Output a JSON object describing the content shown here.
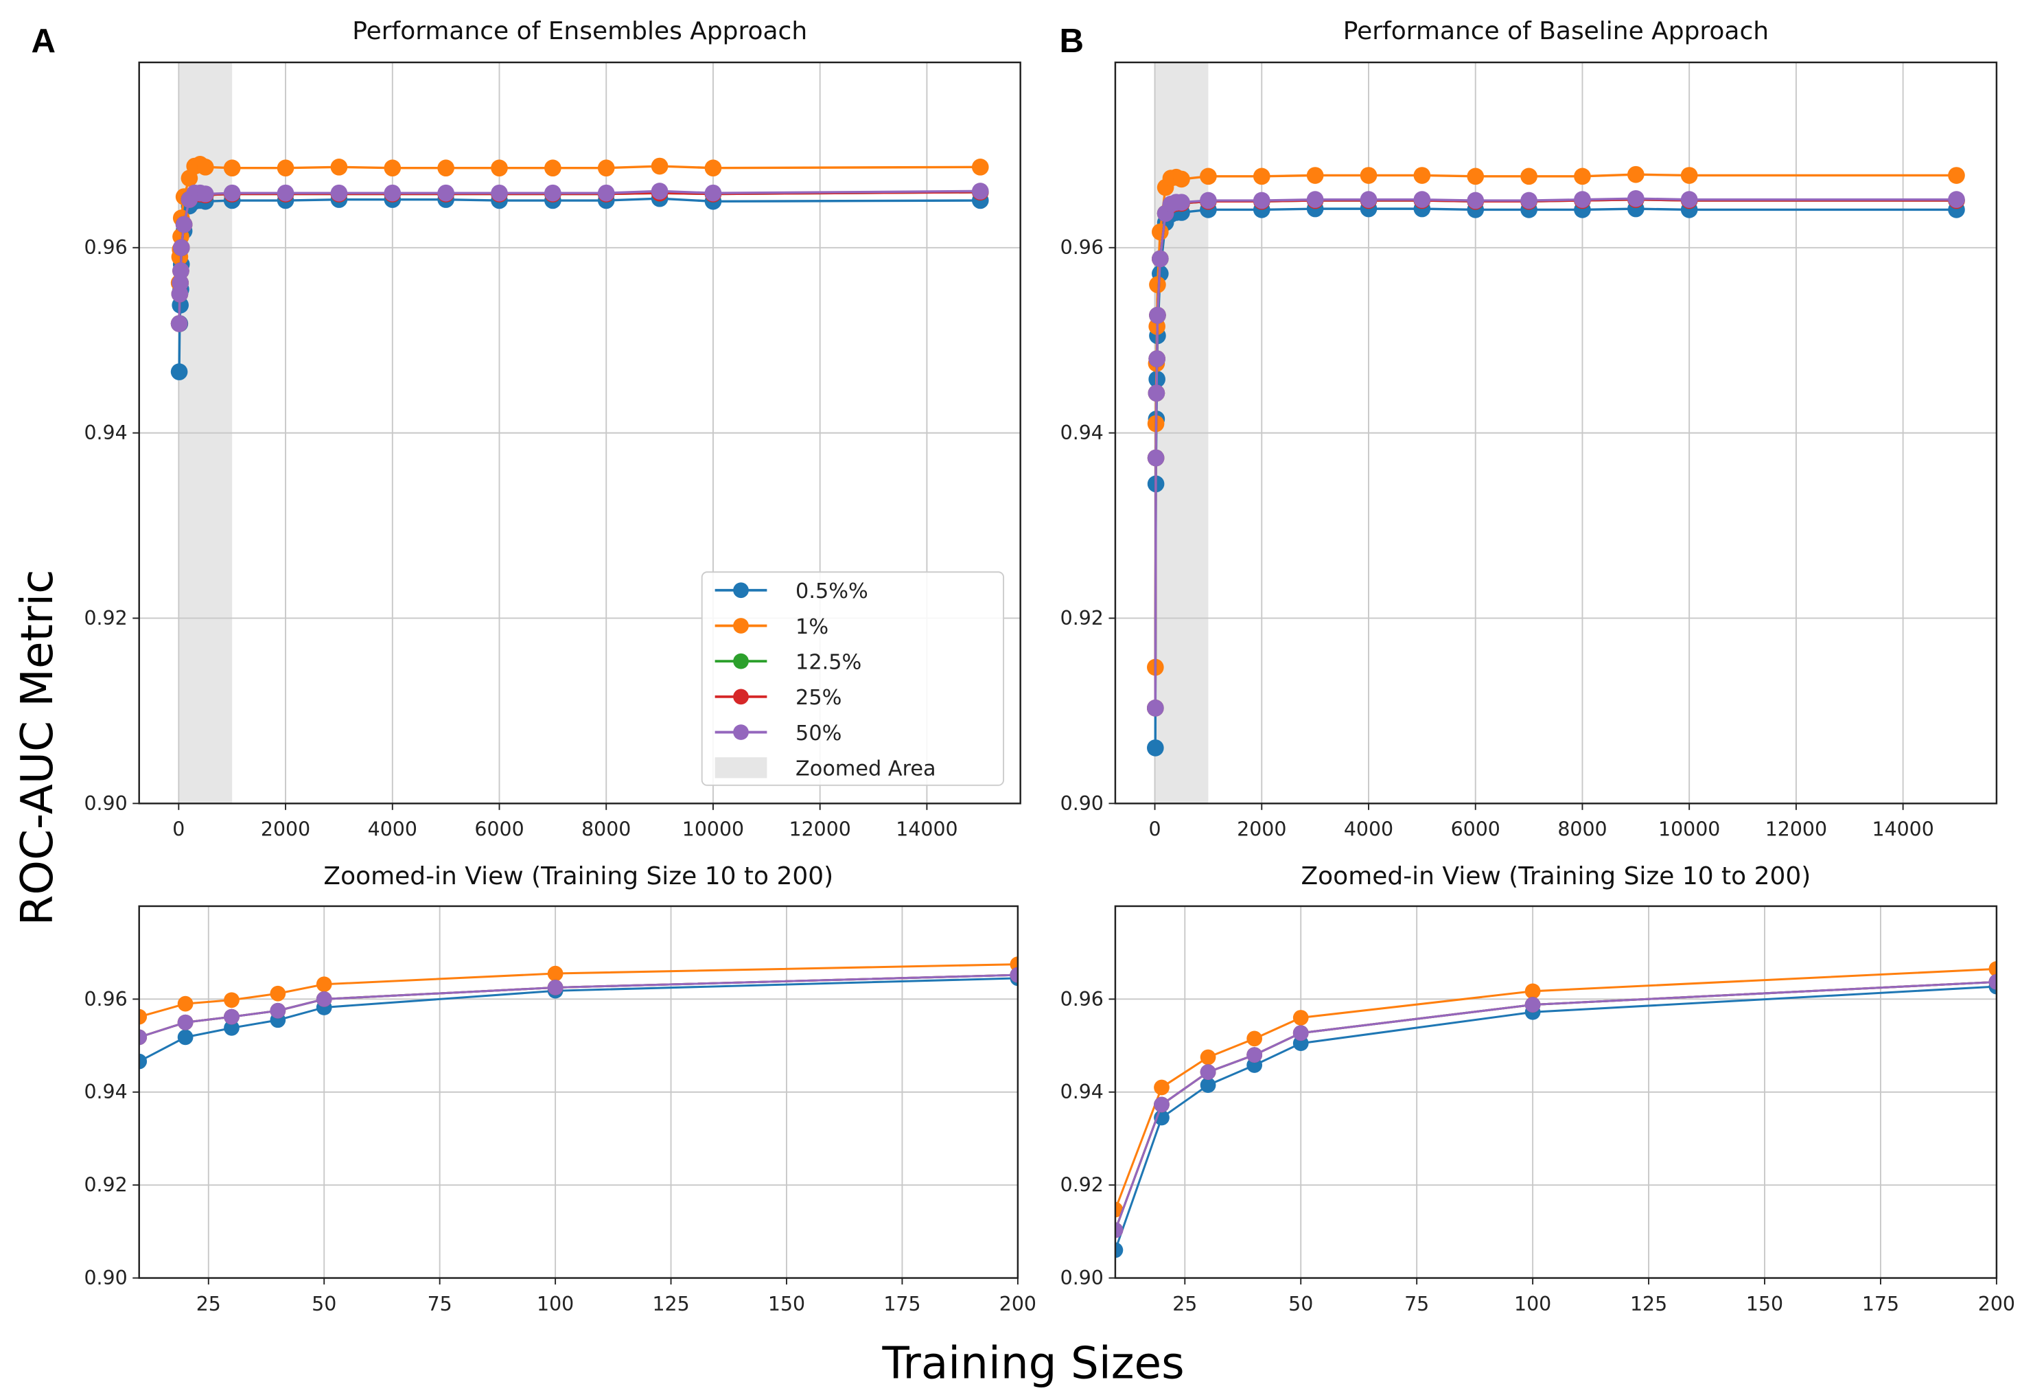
{
  "figure": {
    "ylabel": "ROC-AUC Metric",
    "xlabel": "Training Sizes"
  },
  "chart_data": [
    {
      "type": "line",
      "panel": "A",
      "title": "Performance of Ensembles Approach",
      "xlim": [
        -740,
        15750
      ],
      "ylim": [
        0.9,
        0.98
      ],
      "xticks": [
        0,
        2000,
        4000,
        6000,
        8000,
        10000,
        12000,
        14000
      ],
      "yticks": [
        0.9,
        0.92,
        0.94,
        0.96
      ],
      "grid": true,
      "shaded_span": {
        "label": "Zoomed Area",
        "x": [
          10,
          1000
        ]
      },
      "legend": {
        "placement": "lower-right",
        "show": true
      },
      "x": [
        10,
        20,
        30,
        40,
        50,
        100,
        200,
        300,
        400,
        500,
        1000,
        2000,
        3000,
        4000,
        5000,
        6000,
        7000,
        8000,
        9000,
        10000,
        15000
      ],
      "series": [
        {
          "name": "0.5%%",
          "color": "#1f77b4",
          "values": [
            0.9466,
            0.9518,
            0.9538,
            0.9555,
            0.9582,
            0.9618,
            0.9645,
            0.965,
            0.9651,
            0.965,
            0.9651,
            0.9651,
            0.9652,
            0.9652,
            0.9652,
            0.9651,
            0.9651,
            0.9651,
            0.9653,
            0.965,
            0.9651
          ]
        },
        {
          "name": "1%",
          "color": "#ff7f0e",
          "values": [
            0.9562,
            0.959,
            0.9598,
            0.9612,
            0.9632,
            0.9655,
            0.9675,
            0.9688,
            0.969,
            0.9687,
            0.9686,
            0.9686,
            0.9687,
            0.9686,
            0.9686,
            0.9686,
            0.9686,
            0.9686,
            0.9688,
            0.9686,
            0.9687
          ]
        },
        {
          "name": "12.5%",
          "color": "#2ca02c",
          "values": [
            0.9518,
            0.955,
            0.9562,
            0.9575,
            0.96,
            0.9625,
            0.9652,
            0.9658,
            0.9658,
            0.9657,
            0.9658,
            0.9658,
            0.9658,
            0.9658,
            0.9658,
            0.9658,
            0.9658,
            0.9658,
            0.9659,
            0.9658,
            0.966
          ]
        },
        {
          "name": "25%",
          "color": "#d62728",
          "values": [
            0.9518,
            0.955,
            0.9562,
            0.9575,
            0.96,
            0.9625,
            0.9652,
            0.9658,
            0.9658,
            0.9657,
            0.9658,
            0.9658,
            0.9658,
            0.9658,
            0.9658,
            0.9658,
            0.9658,
            0.9658,
            0.9659,
            0.9658,
            0.966
          ]
        },
        {
          "name": "50%",
          "color": "#9467bd",
          "values": [
            0.9518,
            0.955,
            0.9562,
            0.9575,
            0.96,
            0.9625,
            0.9652,
            0.9659,
            0.9659,
            0.9658,
            0.9659,
            0.9659,
            0.9659,
            0.9659,
            0.9659,
            0.9659,
            0.9659,
            0.9659,
            0.9661,
            0.9659,
            0.9661
          ]
        }
      ]
    },
    {
      "type": "line",
      "panel": "B",
      "title": "Performance of Baseline Approach",
      "xlim": [
        -740,
        15750
      ],
      "ylim": [
        0.9,
        0.98
      ],
      "xticks": [
        0,
        2000,
        4000,
        6000,
        8000,
        10000,
        12000,
        14000
      ],
      "yticks": [
        0.9,
        0.92,
        0.94,
        0.96
      ],
      "grid": true,
      "shaded_span": {
        "label": "Zoomed Area",
        "x": [
          10,
          1000
        ]
      },
      "legend": {
        "show": false
      },
      "x": [
        10,
        20,
        30,
        40,
        50,
        100,
        200,
        300,
        400,
        500,
        1000,
        2000,
        3000,
        4000,
        5000,
        6000,
        7000,
        8000,
        9000,
        10000,
        15000
      ],
      "series": [
        {
          "name": "0.5%%",
          "color": "#1f77b4",
          "values": [
            0.906,
            0.9345,
            0.9415,
            0.9458,
            0.9505,
            0.9572,
            0.9627,
            0.9636,
            0.9638,
            0.9638,
            0.9641,
            0.9641,
            0.9642,
            0.9642,
            0.9642,
            0.9641,
            0.9641,
            0.9641,
            0.9642,
            0.9641,
            0.9641
          ]
        },
        {
          "name": "1%",
          "color": "#ff7f0e",
          "values": [
            0.9147,
            0.941,
            0.9475,
            0.9515,
            0.956,
            0.9617,
            0.9665,
            0.9675,
            0.9676,
            0.9674,
            0.9677,
            0.9677,
            0.9678,
            0.9678,
            0.9678,
            0.9677,
            0.9677,
            0.9677,
            0.9679,
            0.9678,
            0.9678
          ]
        },
        {
          "name": "12.5%",
          "color": "#2ca02c",
          "values": [
            0.9103,
            0.9373,
            0.9443,
            0.948,
            0.9527,
            0.9588,
            0.9637,
            0.9646,
            0.9648,
            0.9648,
            0.965,
            0.965,
            0.9651,
            0.9651,
            0.9651,
            0.965,
            0.965,
            0.9651,
            0.9652,
            0.9651,
            0.9651
          ]
        },
        {
          "name": "25%",
          "color": "#d62728",
          "values": [
            0.9103,
            0.9373,
            0.9443,
            0.948,
            0.9527,
            0.9588,
            0.9637,
            0.9646,
            0.9648,
            0.9648,
            0.965,
            0.965,
            0.9651,
            0.9651,
            0.9651,
            0.965,
            0.965,
            0.9651,
            0.9652,
            0.9651,
            0.9651
          ]
        },
        {
          "name": "50%",
          "color": "#9467bd",
          "values": [
            0.9103,
            0.9373,
            0.9443,
            0.948,
            0.9527,
            0.9588,
            0.9637,
            0.9647,
            0.9649,
            0.9649,
            0.9651,
            0.9651,
            0.9652,
            0.9652,
            0.9652,
            0.9651,
            0.9651,
            0.9652,
            0.9653,
            0.9652,
            0.9652
          ]
        }
      ]
    },
    {
      "type": "line",
      "panel": "A-zoom",
      "title": "Zoomed-in View (Training Size 10 to 200)",
      "xlim": [
        10,
        200
      ],
      "ylim": [
        0.9,
        0.98
      ],
      "xticks": [
        25,
        50,
        75,
        100,
        125,
        150,
        175,
        200
      ],
      "yticks": [
        0.9,
        0.92,
        0.94,
        0.96
      ],
      "grid": true,
      "x": [
        10,
        20,
        30,
        40,
        50,
        100,
        200
      ],
      "series": [
        {
          "name": "0.5%%",
          "color": "#1f77b4",
          "values": [
            0.9466,
            0.9518,
            0.9538,
            0.9555,
            0.9582,
            0.9618,
            0.9645
          ]
        },
        {
          "name": "1%",
          "color": "#ff7f0e",
          "values": [
            0.9562,
            0.959,
            0.9598,
            0.9612,
            0.9632,
            0.9655,
            0.9675
          ]
        },
        {
          "name": "12.5%",
          "color": "#2ca02c",
          "values": [
            0.9518,
            0.955,
            0.9562,
            0.9575,
            0.96,
            0.9625,
            0.9652
          ]
        },
        {
          "name": "25%",
          "color": "#d62728",
          "values": [
            0.9518,
            0.955,
            0.9562,
            0.9575,
            0.96,
            0.9625,
            0.9652
          ]
        },
        {
          "name": "50%",
          "color": "#9467bd",
          "values": [
            0.9518,
            0.955,
            0.9562,
            0.9575,
            0.96,
            0.9625,
            0.9652
          ]
        }
      ]
    },
    {
      "type": "line",
      "panel": "B-zoom",
      "title": "Zoomed-in View (Training Size 10 to 200)",
      "xlim": [
        10,
        200
      ],
      "ylim": [
        0.9,
        0.98
      ],
      "xticks": [
        25,
        50,
        75,
        100,
        125,
        150,
        175,
        200
      ],
      "yticks": [
        0.9,
        0.92,
        0.94,
        0.96
      ],
      "grid": true,
      "x": [
        10,
        20,
        30,
        40,
        50,
        100,
        200
      ],
      "series": [
        {
          "name": "0.5%%",
          "color": "#1f77b4",
          "values": [
            0.906,
            0.9345,
            0.9415,
            0.9458,
            0.9505,
            0.9572,
            0.9627
          ]
        },
        {
          "name": "1%",
          "color": "#ff7f0e",
          "values": [
            0.9147,
            0.941,
            0.9475,
            0.9515,
            0.956,
            0.9617,
            0.9665
          ]
        },
        {
          "name": "12.5%",
          "color": "#2ca02c",
          "values": [
            0.9103,
            0.9373,
            0.9443,
            0.948,
            0.9527,
            0.9588,
            0.9637
          ]
        },
        {
          "name": "25%",
          "color": "#d62728",
          "values": [
            0.9103,
            0.9373,
            0.9443,
            0.948,
            0.9527,
            0.9588,
            0.9637
          ]
        },
        {
          "name": "50%",
          "color": "#9467bd",
          "values": [
            0.9103,
            0.9373,
            0.9443,
            0.948,
            0.9527,
            0.9588,
            0.9637
          ]
        }
      ]
    }
  ]
}
